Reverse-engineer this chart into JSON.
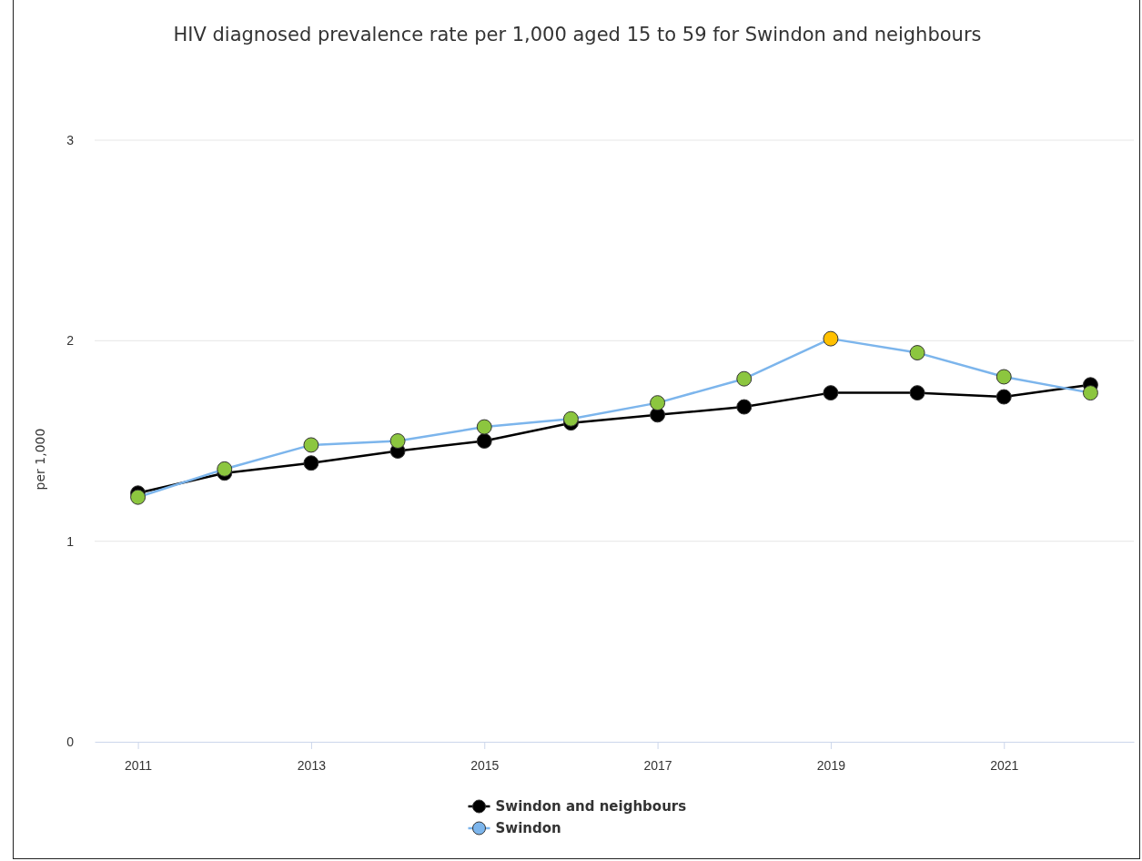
{
  "chart_data": {
    "type": "line",
    "title": "HIV diagnosed prevalence rate per 1,000 aged 15 to 59 for Swindon and neighbours",
    "ylabel": "per 1,000",
    "x": [
      2011,
      2012,
      2013,
      2014,
      2015,
      2016,
      2017,
      2018,
      2019,
      2020,
      2021,
      2022
    ],
    "xlim": [
      2010.5,
      2022.5
    ],
    "xticks": [
      2011,
      2013,
      2015,
      2017,
      2019,
      2021
    ],
    "ylim": [
      0,
      3
    ],
    "yticks": [
      0,
      1,
      2,
      3
    ],
    "grid": "y",
    "legend": "bottom",
    "marker": "circle",
    "series": [
      {
        "name": "Swindon and neighbours",
        "color": "#000000",
        "values": [
          1.24,
          1.34,
          1.39,
          1.45,
          1.5,
          1.59,
          1.63,
          1.67,
          1.74,
          1.74,
          1.72,
          1.78
        ]
      },
      {
        "name": "Swindon",
        "color": "#7cb5ec",
        "colors": [
          "#8cc63f",
          "#8cc63f",
          "#8cc63f",
          "#8cc63f",
          "#8cc63f",
          "#8cc63f",
          "#8cc63f",
          "#8cc63f",
          "#ffc000",
          "#8cc63f",
          "#8cc63f",
          "#8cc63f"
        ],
        "values": [
          1.22,
          1.36,
          1.48,
          1.5,
          1.57,
          1.61,
          1.69,
          1.81,
          2.01,
          1.94,
          1.82,
          1.74
        ]
      }
    ]
  }
}
